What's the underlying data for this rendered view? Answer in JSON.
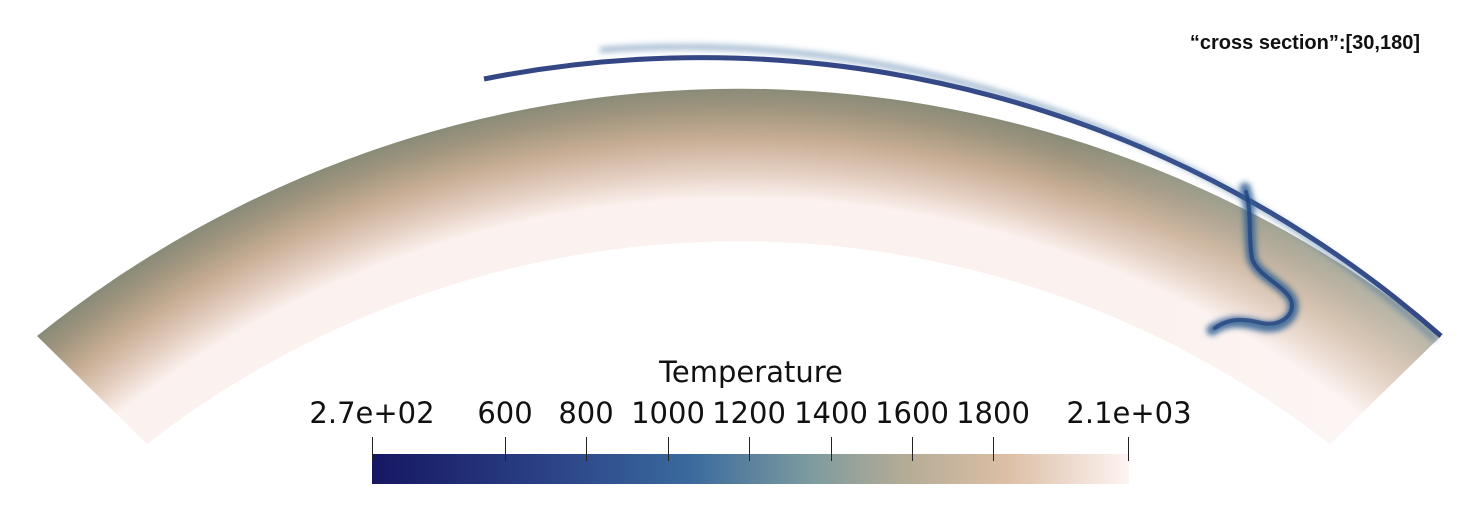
{
  "view": {
    "section_label": "“cross section”:[30,180]"
  },
  "colorbar": {
    "title": "Temperature",
    "tick_labels": [
      "2.7e+02",
      "600",
      "800",
      "1000",
      "1200",
      "1400",
      "1600",
      "1800",
      "2.1e+03"
    ],
    "range": [
      270,
      2100
    ],
    "colormap_stops": [
      "#161763",
      "#2a3f85",
      "#3a6a9d",
      "#7d9b9f",
      "#b3ab95",
      "#ddbfa6",
      "#fdf4f2"
    ]
  }
}
